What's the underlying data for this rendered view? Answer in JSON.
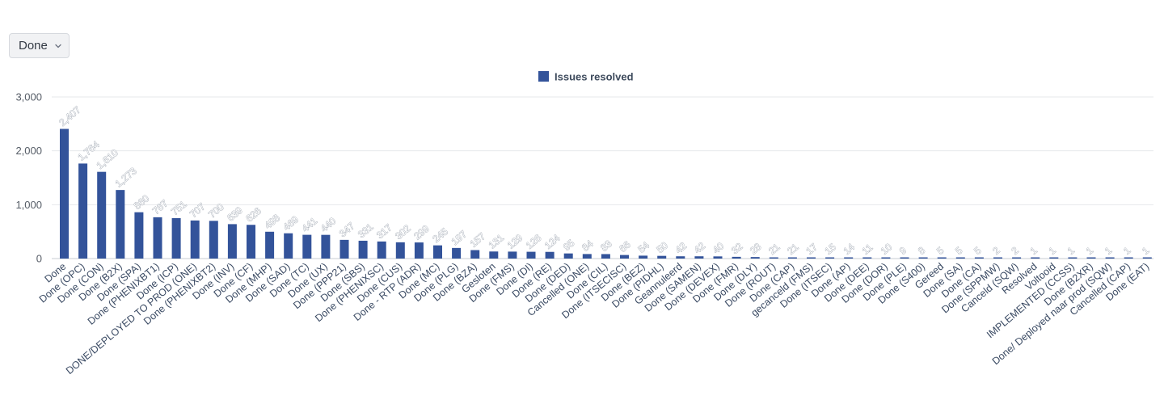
{
  "filter": {
    "selected": "Done",
    "icon": "chevron-down-icon"
  },
  "colors": {
    "bar": "#33539a",
    "grid": "#e6e8eb",
    "axis": "#c7ccd3"
  },
  "chart_data": {
    "type": "bar",
    "legend": {
      "label": "Issues resolved",
      "placement": "top-center"
    },
    "ylim": [
      0,
      3000
    ],
    "yticks": [
      0,
      1000,
      2000,
      3000
    ],
    "ytick_labels": [
      "0",
      "1,000",
      "2,000",
      "3,000"
    ],
    "grid": true,
    "categories": [
      "Done",
      "Done (OPC)",
      "Done (CON)",
      "Done (B2X)",
      "Done (SPA)",
      "Done (PHENIXBT1)",
      "Done (ICP)",
      "DONE/DEPLOYED TO PROD (ONE)",
      "Done (PHENIXBT2)",
      "Done (INV)",
      "Done (CF)",
      "Done (MHP)",
      "Done (SAD)",
      "Done (TC)",
      "Done (UX)",
      "Done (PPP21)",
      "Done (SBS)",
      "Done (PHENIXSC)",
      "Done (CUS)",
      "Done - RTP (ADR)",
      "Done (MC)",
      "Done (PLG)",
      "Done (BZA)",
      "Gesloten",
      "Done (FMS)",
      "Done (DI)",
      "Done (RE)",
      "Done (DED)",
      "Cancelled (ONE)",
      "Done (CIL)",
      "Done (ITSECISC)",
      "Done (BEZ)",
      "Done (PIDHL)",
      "Geannuleerd",
      "Done (SAMEN)",
      "Done (DEVEX)",
      "Done (FMR)",
      "Done (DLY)",
      "Done (ROUT)",
      "Done (CAP)",
      "gecanceld (FMS)",
      "Done (ITSEC)",
      "Done (AP)",
      "Done (DEE)",
      "Done (DOR)",
      "Done (PLE)",
      "Done (S400)",
      "Gereed",
      "Done (SA)",
      "Done (CA)",
      "Done (SPPMW)",
      "Canceld (SQW)",
      "Resolved",
      "Voltooid",
      "IMPLEMENTED (CCSS)",
      "Done (B2XR)",
      "Done/ Deployed naar prod (SQW)",
      "Cancelled (CAP)",
      "Done (EAT)"
    ],
    "values": [
      2407,
      1764,
      1610,
      1273,
      860,
      767,
      751,
      707,
      700,
      639,
      626,
      498,
      469,
      441,
      440,
      347,
      331,
      317,
      302,
      299,
      245,
      197,
      157,
      131,
      129,
      126,
      124,
      95,
      84,
      83,
      66,
      54,
      50,
      42,
      42,
      40,
      32,
      28,
      21,
      21,
      17,
      15,
      14,
      11,
      10,
      9,
      8,
      5,
      5,
      5,
      2,
      2,
      1,
      1,
      1,
      1,
      1,
      1,
      1
    ],
    "value_labels": [
      "2,407",
      "1,764",
      "1,610",
      "1,273",
      "860",
      "767",
      "751",
      "707",
      "700",
      "639",
      "626",
      "498",
      "469",
      "441",
      "440",
      "347",
      "331",
      "317",
      "302",
      "299",
      "245",
      "197",
      "157",
      "131",
      "129",
      "126",
      "124",
      "95",
      "84",
      "83",
      "66",
      "54",
      "50",
      "42",
      "42",
      "40",
      "32",
      "28",
      "21",
      "21",
      "17",
      "15",
      "14",
      "11",
      "10",
      "9",
      "8",
      "5",
      "5",
      "5",
      "2",
      "2",
      "1",
      "1",
      "1",
      "1",
      "1",
      "1",
      "1"
    ]
  }
}
